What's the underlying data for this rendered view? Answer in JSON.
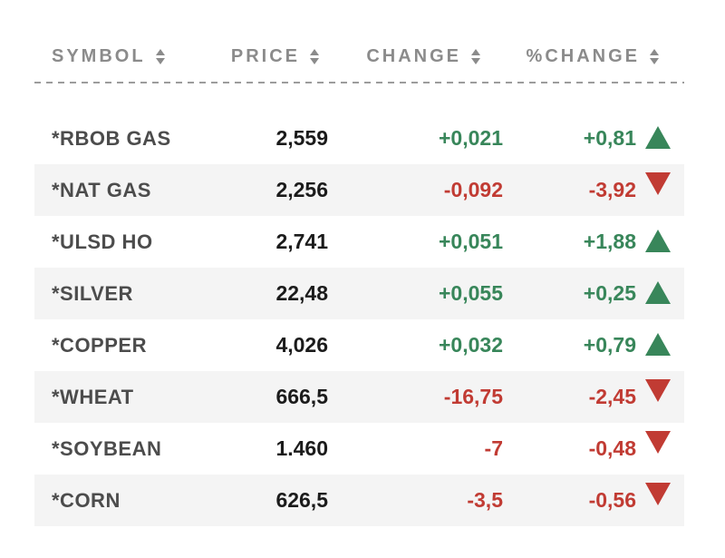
{
  "table": {
    "columns": [
      {
        "id": "symbol",
        "label": "SYMBOL",
        "sort_icon": "sort-arrows-icon"
      },
      {
        "id": "price",
        "label": "PRICE",
        "sort_icon": "sort-arrows-icon"
      },
      {
        "id": "change",
        "label": "CHANGE",
        "sort_icon": "sort-arrows-icon"
      },
      {
        "id": "pct_change",
        "label": "%CHANGE",
        "sort_icon": "sort-arrows-icon"
      }
    ],
    "rows": [
      {
        "symbol": "*RBOB GAS",
        "price": "2,559",
        "change": "+0,021",
        "pct_change": "+0,81",
        "direction": "up"
      },
      {
        "symbol": "*NAT GAS",
        "price": "2,256",
        "change": "-0,092",
        "pct_change": "-3,92",
        "direction": "down"
      },
      {
        "symbol": "*ULSD HO",
        "price": "2,741",
        "change": "+0,051",
        "pct_change": "+1,88",
        "direction": "up"
      },
      {
        "symbol": "*SILVER",
        "price": "22,48",
        "change": "+0,055",
        "pct_change": "+0,25",
        "direction": "up"
      },
      {
        "symbol": "*COPPER",
        "price": "4,026",
        "change": "+0,032",
        "pct_change": "+0,79",
        "direction": "up"
      },
      {
        "symbol": "*WHEAT",
        "price": "666,5",
        "change": "-16,75",
        "pct_change": "-2,45",
        "direction": "down"
      },
      {
        "symbol": "*SOYBEAN",
        "price": "1.460",
        "change": "-7",
        "pct_change": "-0,48",
        "direction": "down"
      },
      {
        "symbol": "*CORN",
        "price": "626,5",
        "change": "-3,5",
        "pct_change": "-0,56",
        "direction": "down"
      }
    ],
    "colors": {
      "positive": "#38865a",
      "negative": "#c13b33",
      "header_text": "#8b8b8b",
      "symbol_text": "#4c4c4c",
      "price_text": "#1b1b1b",
      "alt_row_bg": "#f4f4f4",
      "divider": "#9c9c9c"
    }
  }
}
